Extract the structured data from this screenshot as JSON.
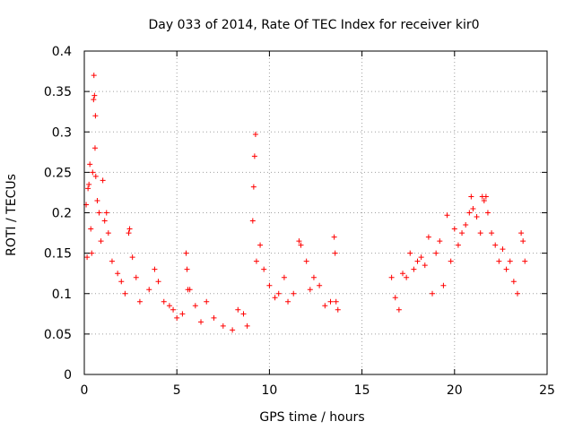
{
  "chart_data": {
    "type": "scatter",
    "title": "Day 033 of 2014, Rate Of TEC Index for receiver kir0",
    "xlabel": "GPS time / hours",
    "ylabel": "ROTI / TECUs",
    "xlim": [
      0,
      25
    ],
    "ylim": [
      0,
      0.4
    ],
    "x_ticks": [
      0,
      5,
      10,
      15,
      20,
      25
    ],
    "x_tick_labels": [
      "0",
      "5",
      "10",
      "15",
      "20",
      "25"
    ],
    "y_ticks": [
      0,
      0.05,
      0.1,
      0.15,
      0.2,
      0.25,
      0.3,
      0.35,
      0.4
    ],
    "y_tick_labels": [
      "0",
      "0.05",
      "0.1",
      "0.15",
      "0.2",
      "0.25",
      "0.3",
      "0.35",
      "0.4"
    ],
    "grid": true,
    "marker": "+",
    "color": "#ff0000",
    "series": [
      {
        "name": "ROTI",
        "points": [
          [
            0.1,
            0.21
          ],
          [
            0.15,
            0.145
          ],
          [
            0.2,
            0.23
          ],
          [
            0.25,
            0.235
          ],
          [
            0.3,
            0.26
          ],
          [
            0.35,
            0.18
          ],
          [
            0.4,
            0.15
          ],
          [
            0.45,
            0.25
          ],
          [
            0.5,
            0.34
          ],
          [
            0.52,
            0.37
          ],
          [
            0.55,
            0.345
          ],
          [
            0.58,
            0.28
          ],
          [
            0.6,
            0.32
          ],
          [
            0.62,
            0.245
          ],
          [
            0.7,
            0.215
          ],
          [
            0.8,
            0.2
          ],
          [
            0.9,
            0.165
          ],
          [
            1.0,
            0.24
          ],
          [
            1.1,
            0.19
          ],
          [
            1.2,
            0.2
          ],
          [
            1.3,
            0.175
          ],
          [
            1.5,
            0.14
          ],
          [
            1.8,
            0.125
          ],
          [
            2.0,
            0.115
          ],
          [
            2.2,
            0.1
          ],
          [
            2.4,
            0.175
          ],
          [
            2.45,
            0.18
          ],
          [
            2.6,
            0.145
          ],
          [
            2.8,
            0.12
          ],
          [
            3.0,
            0.09
          ],
          [
            3.5,
            0.105
          ],
          [
            3.8,
            0.13
          ],
          [
            4.0,
            0.115
          ],
          [
            4.3,
            0.09
          ],
          [
            4.6,
            0.085
          ],
          [
            4.8,
            0.08
          ],
          [
            5.0,
            0.07
          ],
          [
            5.3,
            0.075
          ],
          [
            5.5,
            0.15
          ],
          [
            5.55,
            0.13
          ],
          [
            5.6,
            0.105
          ],
          [
            5.7,
            0.105
          ],
          [
            6.0,
            0.085
          ],
          [
            6.3,
            0.065
          ],
          [
            6.6,
            0.09
          ],
          [
            7.0,
            0.07
          ],
          [
            7.5,
            0.06
          ],
          [
            8.0,
            0.055
          ],
          [
            8.3,
            0.08
          ],
          [
            8.6,
            0.075
          ],
          [
            8.8,
            0.06
          ],
          [
            9.1,
            0.19
          ],
          [
            9.15,
            0.232
          ],
          [
            9.2,
            0.27
          ],
          [
            9.25,
            0.297
          ],
          [
            9.3,
            0.14
          ],
          [
            9.5,
            0.16
          ],
          [
            9.7,
            0.13
          ],
          [
            10.0,
            0.11
          ],
          [
            10.3,
            0.095
          ],
          [
            10.5,
            0.1
          ],
          [
            10.8,
            0.12
          ],
          [
            11.0,
            0.09
          ],
          [
            11.3,
            0.1
          ],
          [
            11.6,
            0.165
          ],
          [
            11.7,
            0.16
          ],
          [
            12.0,
            0.14
          ],
          [
            12.2,
            0.105
          ],
          [
            12.4,
            0.12
          ],
          [
            12.7,
            0.11
          ],
          [
            13.0,
            0.085
          ],
          [
            13.3,
            0.09
          ],
          [
            13.5,
            0.17
          ],
          [
            13.55,
            0.15
          ],
          [
            13.6,
            0.09
          ],
          [
            13.7,
            0.08
          ],
          [
            16.6,
            0.12
          ],
          [
            16.8,
            0.095
          ],
          [
            17.0,
            0.08
          ],
          [
            17.2,
            0.125
          ],
          [
            17.4,
            0.12
          ],
          [
            17.6,
            0.15
          ],
          [
            17.8,
            0.13
          ],
          [
            18.0,
            0.14
          ],
          [
            18.2,
            0.145
          ],
          [
            18.4,
            0.135
          ],
          [
            18.6,
            0.17
          ],
          [
            18.8,
            0.1
          ],
          [
            19.0,
            0.15
          ],
          [
            19.2,
            0.165
          ],
          [
            19.4,
            0.11
          ],
          [
            19.6,
            0.197
          ],
          [
            19.8,
            0.14
          ],
          [
            20.0,
            0.18
          ],
          [
            20.2,
            0.16
          ],
          [
            20.4,
            0.175
          ],
          [
            20.6,
            0.185
          ],
          [
            20.8,
            0.2
          ],
          [
            20.9,
            0.22
          ],
          [
            21.0,
            0.205
          ],
          [
            21.2,
            0.195
          ],
          [
            21.4,
            0.175
          ],
          [
            21.5,
            0.22
          ],
          [
            21.6,
            0.215
          ],
          [
            21.7,
            0.22
          ],
          [
            21.8,
            0.2
          ],
          [
            22.0,
            0.175
          ],
          [
            22.2,
            0.16
          ],
          [
            22.4,
            0.14
          ],
          [
            22.6,
            0.155
          ],
          [
            22.8,
            0.13
          ],
          [
            23.0,
            0.14
          ],
          [
            23.2,
            0.115
          ],
          [
            23.4,
            0.1
          ],
          [
            23.6,
            0.175
          ],
          [
            23.7,
            0.165
          ],
          [
            23.8,
            0.14
          ]
        ]
      }
    ]
  }
}
